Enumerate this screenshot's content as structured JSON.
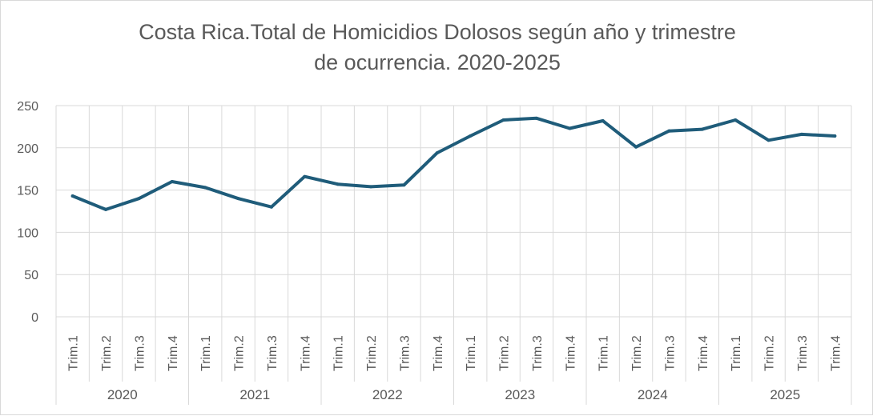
{
  "chart_data": {
    "type": "line",
    "title_lines": [
      "Costa Rica.Total de Homicidios Dolosos según año y trimestre",
      "de ocurrencia. 2020-2025"
    ],
    "xlabel": "",
    "ylabel": "",
    "ylim": [
      0,
      250
    ],
    "yticks": [
      0,
      50,
      100,
      150,
      200,
      250
    ],
    "grid": true,
    "legend": "none",
    "line_color": "#1f5c7a",
    "groups": [
      {
        "year": "2020",
        "categories": [
          "Trim.1",
          "Trim.2",
          "Trim.3",
          "Trim.4"
        ]
      },
      {
        "year": "2021",
        "categories": [
          "Trim.1",
          "Trim.2",
          "Trim.3",
          "Trim.4"
        ]
      },
      {
        "year": "2022",
        "categories": [
          "Trim.1",
          "Trim.2",
          "Trim.3",
          "Trim.4"
        ]
      },
      {
        "year": "2023",
        "categories": [
          "Trim.1",
          "Trim.2",
          "Trim.3",
          "Trim.4"
        ]
      },
      {
        "year": "2024",
        "categories": [
          "Trim.1",
          "Trim.2",
          "Trim.3",
          "Trim.4"
        ]
      },
      {
        "year": "2025",
        "categories": [
          "Trim.1",
          "Trim.2",
          "Trim.3",
          "Trim.4"
        ]
      }
    ],
    "series": [
      {
        "values": [
          143,
          127,
          140,
          160,
          153,
          140,
          130,
          166,
          157,
          154,
          156,
          194,
          214,
          233,
          235,
          223,
          232,
          201,
          220,
          222,
          233,
          209,
          216,
          214
        ]
      }
    ]
  }
}
